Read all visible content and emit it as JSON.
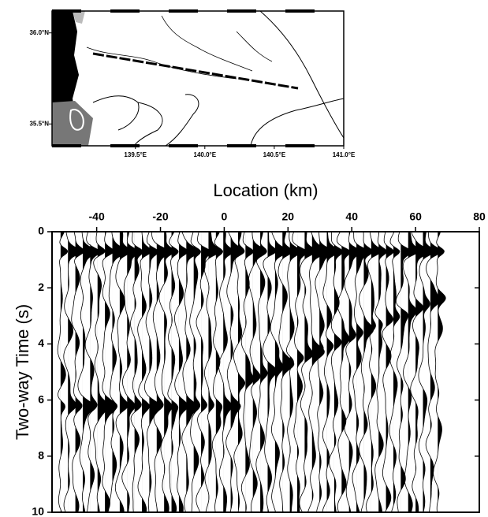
{
  "chart_data": [
    {
      "type": "map",
      "xlim": [
        138.9,
        141.0
      ],
      "ylim": [
        35.38,
        36.12
      ],
      "xticks": [
        {
          "value": 139.5,
          "label": "139.5°E"
        },
        {
          "value": 140.0,
          "label": "140.0°E"
        },
        {
          "value": 140.5,
          "label": "140.5°E"
        },
        {
          "value": 141.0,
          "label": "141.0°E"
        }
      ],
      "yticks": [
        {
          "value": 35.5,
          "label": "35.5°N"
        },
        {
          "value": 36.0,
          "label": "36.0°N"
        }
      ]
    },
    {
      "type": "wiggle",
      "xlabel": "Location (km)",
      "ylabel": "Two-way Time (s)",
      "xlim": [
        -54,
        80
      ],
      "ylim": [
        0,
        10
      ],
      "xticks": [
        -40,
        -20,
        0,
        20,
        40,
        60,
        80
      ],
      "yticks": [
        0,
        2,
        4,
        6,
        8,
        10
      ]
    }
  ]
}
